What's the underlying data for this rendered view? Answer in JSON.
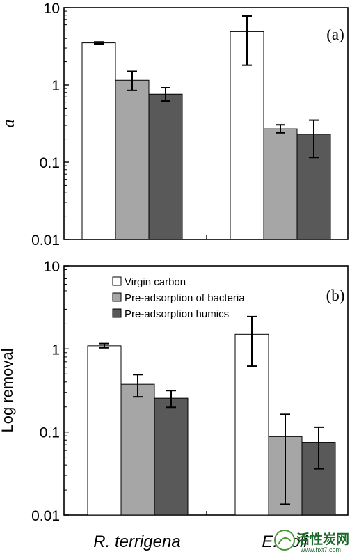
{
  "chart_data": [
    {
      "type": "bar",
      "panel_label": "(a)",
      "ylabel": "a",
      "yscale": "log",
      "ylim": [
        0.01,
        10
      ],
      "yticks": [
        "0.01",
        "0.1",
        "1",
        "10"
      ],
      "categories": [
        "R. terrigena",
        "E. coli"
      ],
      "series": [
        {
          "values": [
            3.5,
            4.9
          ],
          "error_low": [
            3.4,
            1.8
          ],
          "error_high": [
            3.6,
            7.8
          ],
          "color": "#ffffff"
        },
        {
          "values": [
            1.15,
            0.27
          ],
          "error_low": [
            0.85,
            0.24
          ],
          "error_high": [
            1.5,
            0.305
          ],
          "color": "#a6a6a6"
        },
        {
          "values": [
            0.76,
            0.23
          ],
          "error_low": [
            0.62,
            0.115
          ],
          "error_high": [
            0.92,
            0.35
          ],
          "color": "#595959"
        }
      ]
    },
    {
      "type": "bar",
      "panel_label": "(b)",
      "ylabel": "Log removal",
      "yscale": "log",
      "ylim": [
        0.01,
        10
      ],
      "yticks": [
        "0.01",
        "0.1",
        "1",
        "10"
      ],
      "categories": [
        "R. terrigena",
        "E. coli"
      ],
      "legend_position": "top-center",
      "series": [
        {
          "name": "Virgin carbon",
          "values": [
            1.09,
            1.5
          ],
          "error_low": [
            1.03,
            0.62
          ],
          "error_high": [
            1.16,
            2.45
          ],
          "color": "#ffffff"
        },
        {
          "name": "Pre-adsorption of bacteria",
          "values": [
            0.375,
            0.088
          ],
          "error_low": [
            0.265,
            0.0135
          ],
          "error_high": [
            0.49,
            0.163
          ],
          "color": "#a6a6a6"
        },
        {
          "name": "Pre-adsorption humics",
          "values": [
            0.255,
            0.075
          ],
          "error_low": [
            0.198,
            0.036
          ],
          "error_high": [
            0.315,
            0.114
          ],
          "color": "#595959"
        }
      ]
    }
  ],
  "x_categories": [
    "R. terrigena",
    "E. coli"
  ],
  "watermark": {
    "cn": "活性炭网",
    "url": "www.hxt7.com"
  }
}
